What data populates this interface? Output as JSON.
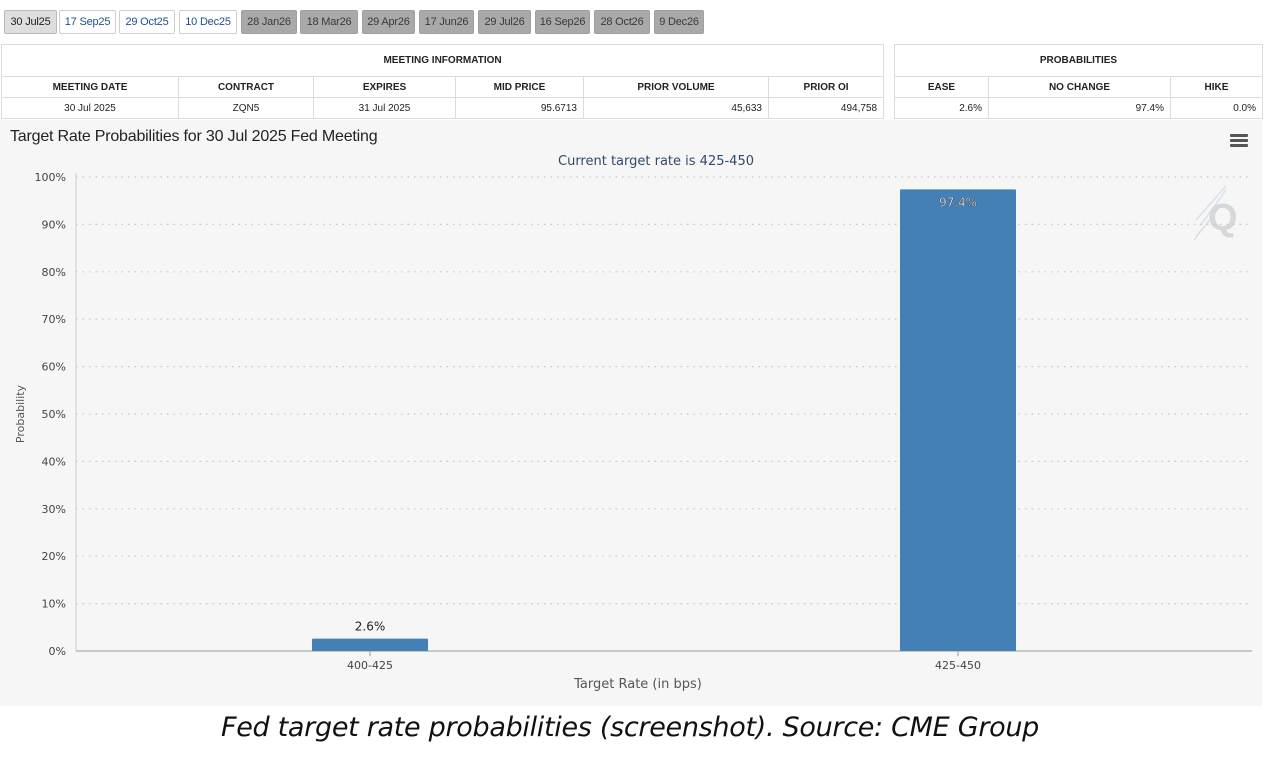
{
  "tabs": [
    {
      "label": "30 Jul25",
      "state": "active"
    },
    {
      "label": "17 Sep25",
      "state": "normal"
    },
    {
      "label": "29 Oct25",
      "state": "normal"
    },
    {
      "label": "10 Dec25",
      "state": "normal"
    },
    {
      "label": "28 Jan26",
      "state": "future"
    },
    {
      "label": "18 Mar26",
      "state": "future"
    },
    {
      "label": "29 Apr26",
      "state": "future"
    },
    {
      "label": "17 Jun26",
      "state": "future"
    },
    {
      "label": "29 Jul26",
      "state": "future"
    },
    {
      "label": "16 Sep26",
      "state": "future"
    },
    {
      "label": "28 Oct26",
      "state": "future"
    },
    {
      "label": "9 Dec26",
      "state": "future"
    }
  ],
  "meeting_info": {
    "group_title": "MEETING INFORMATION",
    "headers": [
      "MEETING DATE",
      "CONTRACT",
      "EXPIRES",
      "MID PRICE",
      "PRIOR VOLUME",
      "PRIOR OI"
    ],
    "row": [
      "30 Jul 2025",
      "ZQN5",
      "31 Jul 2025",
      "95.6713",
      "45,633",
      "494,758"
    ]
  },
  "probabilities": {
    "group_title": "PROBABILITIES",
    "headers": [
      "EASE",
      "NO CHANGE",
      "HIKE"
    ],
    "row": [
      "2.6%",
      "97.4%",
      "0.0%"
    ]
  },
  "chart_data": {
    "type": "bar",
    "title": "Target Rate Probabilities for 30 Jul 2025 Fed Meeting",
    "subtitle": "Current target rate is 425-450",
    "xlabel": "Target Rate (in bps)",
    "ylabel": "Probability",
    "categories": [
      "400-425",
      "425-450"
    ],
    "values": [
      2.6,
      97.4
    ],
    "data_labels": [
      "2.6%",
      "97.4%"
    ],
    "ylim": [
      0,
      100
    ],
    "yticks": [
      0,
      10,
      20,
      30,
      40,
      50,
      60,
      70,
      80,
      90,
      100
    ],
    "ytick_suffix": "%",
    "grid": true,
    "bar_color": "#4380b6",
    "grid_color": "#c8c8c8",
    "subtitle_color": "#2f4a6e",
    "menu_icon": "hamburger-menu-icon"
  },
  "caption": "Fed target rate probabilities (screenshot). Source: CME Group"
}
